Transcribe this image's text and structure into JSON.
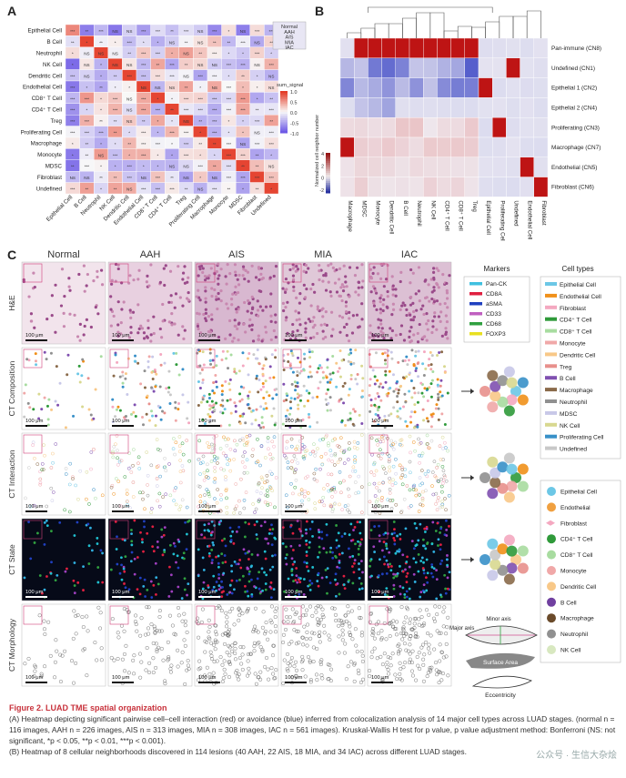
{
  "panelA": {
    "letter": "A",
    "rows": [
      "Epithelial Cell",
      "B Cell",
      "Neutrophil",
      "NK Cell",
      "Dendritic Cell",
      "Endothelial Cell",
      "CD8⁺ T Cell",
      "CD4⁺ T Cell",
      "Treg",
      "Proliferating Cell",
      "Macrophage",
      "Monocyte",
      "MDSC",
      "Fibroblast",
      "Undefined"
    ],
    "cols": [
      "Epithelial Cell",
      "B Cell",
      "Neutrophil",
      "NK Cell",
      "Dendritic Cell",
      "Endothelial Cell",
      "CD8⁺ T Cell",
      "CD4⁺ T Cell",
      "Treg",
      "Proliferating Cell",
      "Macrophage",
      "Monocyte",
      "MDSC",
      "Fibroblast",
      "Undefined"
    ],
    "stages": [
      "Normal",
      "AAH",
      "AIS",
      "MIA",
      "IAC"
    ],
    "colorbar_title": "sum_signal",
    "colorbar_ticks": [
      "1.0",
      "0.5",
      "0.0",
      "-0.5",
      "-1.0"
    ]
  },
  "panelB": {
    "letter": "B",
    "rows": [
      "Pan-immune (CN8)",
      "Undefined (CN1)",
      "Epithelial 1 (CN2)",
      "Epithelial 2 (CN4)",
      "Proliferating (CN3)",
      "Macrophage (CN7)",
      "Endothelial (CN5)",
      "Fibroblast (CN6)"
    ],
    "cols": [
      "Macrophage",
      "MDSC",
      "Monocyte",
      "Dendritic Cell",
      "B Cell",
      "Neutrophil",
      "NK Cell",
      "CD4⁺ T Cell",
      "CD8⁺ T Cell",
      "Treg",
      "Epithelial Cell",
      "Proliferating Cell",
      "Undefined",
      "Endothelial Cell",
      "Fibroblast"
    ],
    "colorbar_title": "Normalized cell neighbor number",
    "colorbar_ticks": [
      "4",
      "2",
      "0",
      "-2"
    ]
  },
  "panelC": {
    "letter": "C",
    "stages": [
      "Normal",
      "AAH",
      "AIS",
      "MIA",
      "IAC"
    ],
    "row_labels": [
      "H&E",
      "CT Composition",
      "CT Interaction",
      "CT State",
      "CT Morphology"
    ],
    "scale_label": "100 μm",
    "markers_title": "Markers",
    "markers": [
      {
        "name": "Pan-CK",
        "color": "#3fc0e0"
      },
      {
        "name": "CD8A",
        "color": "#e02040"
      },
      {
        "name": "aSMA",
        "color": "#2040c0"
      },
      {
        "name": "CD33",
        "color": "#c060c0"
      },
      {
        "name": "CD68",
        "color": "#30a040"
      },
      {
        "name": "FOXP3",
        "color": "#e8e020"
      }
    ],
    "celltypes_title": "Cell types",
    "celltypes": [
      {
        "name": "Epithelial Cell",
        "color": "#6cc7e6"
      },
      {
        "name": "Endothelial Cell",
        "color": "#f0901a"
      },
      {
        "name": "Fibroblast",
        "color": "#f4a8c0"
      },
      {
        "name": "CD4⁺ T Cell",
        "color": "#2f9a3a"
      },
      {
        "name": "CD8⁺ T Cell",
        "color": "#a8dca0"
      },
      {
        "name": "Monocyte",
        "color": "#f0a8a8"
      },
      {
        "name": "Dendritic Cell",
        "color": "#f8c888"
      },
      {
        "name": "Treg",
        "color": "#e8908c"
      },
      {
        "name": "B Cell",
        "color": "#8050b0"
      },
      {
        "name": "Macrophage",
        "color": "#8a6a4a"
      },
      {
        "name": "Neutrophil",
        "color": "#909090"
      },
      {
        "name": "MDSC",
        "color": "#c8c8e8"
      },
      {
        "name": "NK Cell",
        "color": "#d8d890"
      },
      {
        "name": "Proliferating Cell",
        "color": "#3890c8"
      },
      {
        "name": "Undefined",
        "color": "#c8c8c8"
      }
    ],
    "interaction_legend": [
      {
        "name": "Epithelial Cell",
        "color": "#6cc7e6"
      },
      {
        "name": "Endothelial",
        "color": "#f0a040"
      },
      {
        "name": "Fibroblast",
        "color": "#f4a8c0"
      },
      {
        "name": "CD4⁺ T Cell",
        "color": "#2f9a3a"
      },
      {
        "name": "CD8⁺ T Cell",
        "color": "#a8dca0"
      },
      {
        "name": "Monocyte",
        "color": "#f0a8a8"
      },
      {
        "name": "Dendritic Cell",
        "color": "#f8c888"
      },
      {
        "name": "B Cell",
        "color": "#7040a0"
      },
      {
        "name": "Macrophage",
        "color": "#6a4a2a"
      },
      {
        "name": "Neutrophil",
        "color": "#909090"
      },
      {
        "name": "NK Cell",
        "color": "#d8e8c0"
      }
    ],
    "morphology_labels": {
      "minor": "Minor axis",
      "major": "Major axis",
      "area": "Surface Area",
      "ecc": "Eccentricity"
    }
  },
  "caption": {
    "title": "Figure 2.  LUAD TME spatial organization",
    "line_a": "(A) Heatmap depicting significant pairwise cell–cell interaction (red) or avoidance (blue) inferred from colocalization analysis of 14 major cell types across LUAD stages. (normal n = 116 images, AAH n = 226 images, AIS n = 313 images, MIA n = 308 images, IAC n = 561 images). Kruskal-Wallis H test for p value, p value adjustment method: Bonferroni (NS: not significant, *p < 0.05, **p < 0.01, ***p < 0.001).",
    "line_b": "(B) Heatmap of 8 cellular neighborhoods discovered in 114 lesions (40 AAH, 22 AIS, 18 MIA, and 34 IAC) across different LUAD stages."
  },
  "watermark": "公众号 · 生信大杂烩"
}
